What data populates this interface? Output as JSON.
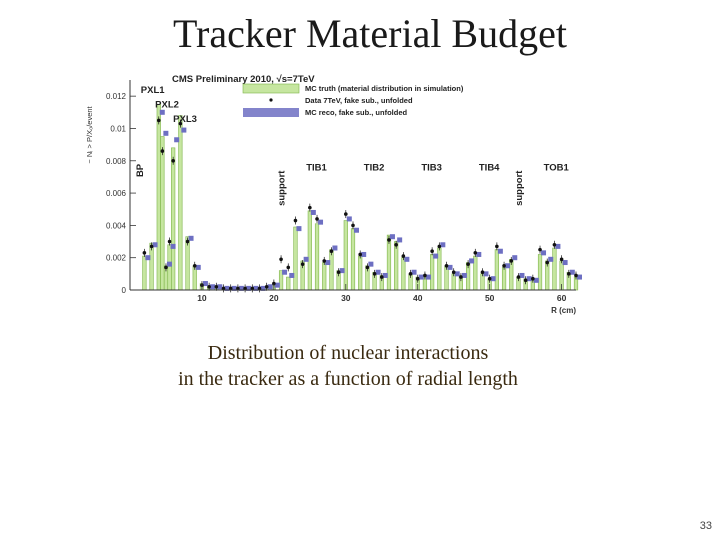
{
  "slide": {
    "title": "Tracker Material Budget",
    "caption_line1": "Distribution of nuclear interactions",
    "caption_line2": "in the tracker  as a function of radial length",
    "page_number": "33"
  },
  "chart_data": {
    "type": "bar",
    "title": "CMS Preliminary 2010, √s=7TeV",
    "xlabel": "R (cm)",
    "ylabel": "~ Nᵢ > P/X₀/event",
    "xlim": [
      0,
      62
    ],
    "ylim": [
      0,
      0.013
    ],
    "x_ticks": [
      10,
      20,
      30,
      40,
      50,
      60
    ],
    "y_ticks": [
      "0",
      "0.002",
      "0.004",
      "0.006",
      "0.008",
      "0.01",
      "0.012"
    ],
    "y_tick_values": [
      0,
      0.002,
      0.004,
      0.006,
      0.008,
      0.01,
      0.012
    ],
    "bin_width_cm": 0.5,
    "grid": false,
    "legend_position": "top-right",
    "legend": [
      {
        "label": "MC truth (material distribution in simulation)",
        "style": "fill"
      },
      {
        "label": "Data 7TeV, fake sub., unfolded",
        "style": "point"
      },
      {
        "label": "MC reco, fake sub., unfolded",
        "style": "square"
      }
    ],
    "region_labels": [
      {
        "text": "PXL1",
        "x": 1.5,
        "y": 0.0122,
        "vertical": false
      },
      {
        "text": "PXL2",
        "x": 3.5,
        "y": 0.0113,
        "vertical": false
      },
      {
        "text": "PXL3",
        "x": 6.0,
        "y": 0.0104,
        "vertical": false
      },
      {
        "text": "BP",
        "x": 1.8,
        "y": 0.0074,
        "vertical": true
      },
      {
        "text": "support",
        "x": 21.5,
        "y": 0.0063,
        "vertical": true
      },
      {
        "text": "TIB1",
        "x": 24.5,
        "y": 0.0074,
        "vertical": false
      },
      {
        "text": "TIB2",
        "x": 32.5,
        "y": 0.0074,
        "vertical": false
      },
      {
        "text": "TIB3",
        "x": 40.5,
        "y": 0.0074,
        "vertical": false
      },
      {
        "text": "TIB4",
        "x": 48.5,
        "y": 0.0074,
        "vertical": false
      },
      {
        "text": "support",
        "x": 54.5,
        "y": 0.0063,
        "vertical": true
      },
      {
        "text": "TOB1",
        "x": 57.5,
        "y": 0.0074,
        "vertical": false
      }
    ],
    "series": [
      {
        "name": "MC truth (material distribution in simulation)",
        "x": [
          2,
          3,
          4,
          4.5,
          5,
          5.5,
          6,
          7,
          8,
          9,
          10,
          11,
          12,
          13,
          14,
          15,
          16,
          17,
          18,
          19,
          20,
          21,
          22,
          23,
          24,
          25,
          26,
          27,
          28,
          29,
          30,
          31,
          32,
          33,
          34,
          35,
          36,
          37,
          38,
          39,
          40,
          41,
          42,
          43,
          44,
          45,
          46,
          47,
          48,
          49,
          50,
          51,
          52,
          53,
          54,
          55,
          56,
          57,
          58,
          59,
          60,
          61,
          62
        ],
        "values": [
          0.0021,
          0.0029,
          0.0115,
          0.0095,
          0.0015,
          0.0028,
          0.0088,
          0.0108,
          0.0033,
          0.0015,
          0.0004,
          0.0002,
          0.0002,
          0.0001,
          0.0001,
          0.0001,
          0.0001,
          0.0001,
          0.0001,
          0.0002,
          0.0003,
          0.0012,
          0.0008,
          0.0039,
          0.0018,
          0.0049,
          0.0041,
          0.0017,
          0.0025,
          0.0012,
          0.0043,
          0.0038,
          0.0021,
          0.0015,
          0.0011,
          0.0009,
          0.0034,
          0.003,
          0.002,
          0.001,
          0.0008,
          0.0008,
          0.0022,
          0.0026,
          0.0015,
          0.001,
          0.0009,
          0.0017,
          0.0021,
          0.001,
          0.0007,
          0.0025,
          0.0014,
          0.0019,
          0.0008,
          0.0007,
          0.0006,
          0.0022,
          0.0018,
          0.0026,
          0.0018,
          0.0011,
          0.0008
        ]
      },
      {
        "name": "Data 7TeV, fake sub., unfolded",
        "x": [
          2,
          3,
          4,
          4.5,
          5,
          5.5,
          6,
          7,
          8,
          9,
          10,
          11,
          12,
          13,
          14,
          15,
          16,
          17,
          18,
          19,
          20,
          21,
          22,
          23,
          24,
          25,
          26,
          27,
          28,
          29,
          30,
          31,
          32,
          33,
          34,
          35,
          36,
          37,
          38,
          39,
          40,
          41,
          42,
          43,
          44,
          45,
          46,
          47,
          48,
          49,
          50,
          51,
          52,
          53,
          54,
          55,
          56,
          57,
          58,
          59,
          60,
          61,
          62
        ],
        "values": [
          0.0023,
          0.0027,
          0.0105,
          0.0086,
          0.0014,
          0.003,
          0.008,
          0.0103,
          0.003,
          0.0015,
          0.0003,
          0.0002,
          0.0002,
          0.0001,
          0.0001,
          0.0001,
          0.0001,
          0.0001,
          0.0001,
          0.0002,
          0.0004,
          0.0019,
          0.0014,
          0.0043,
          0.0016,
          0.0051,
          0.0044,
          0.0018,
          0.0024,
          0.0011,
          0.0047,
          0.004,
          0.0022,
          0.0014,
          0.001,
          0.0008,
          0.0031,
          0.0028,
          0.0021,
          0.001,
          0.0007,
          0.0009,
          0.0024,
          0.0027,
          0.0015,
          0.0011,
          0.0008,
          0.0016,
          0.0023,
          0.0011,
          0.0007,
          0.0027,
          0.0015,
          0.0018,
          0.0008,
          0.0006,
          0.0007,
          0.0025,
          0.0017,
          0.0028,
          0.0019,
          0.001,
          0.0009
        ]
      },
      {
        "name": "MC reco, fake sub., unfolded",
        "x": [
          2,
          3,
          4,
          4.5,
          5,
          5.5,
          6,
          7,
          8,
          9,
          10,
          11,
          12,
          13,
          14,
          15,
          16,
          17,
          18,
          19,
          20,
          21,
          22,
          23,
          24,
          25,
          26,
          27,
          28,
          29,
          30,
          31,
          32,
          33,
          34,
          35,
          36,
          37,
          38,
          39,
          40,
          41,
          42,
          43,
          44,
          45,
          46,
          47,
          48,
          49,
          50,
          51,
          52,
          53,
          54,
          55,
          56,
          57,
          58,
          59,
          60,
          61,
          62
        ],
        "values": [
          0.002,
          0.0028,
          0.011,
          0.0097,
          0.0016,
          0.0027,
          0.0093,
          0.0099,
          0.0032,
          0.0014,
          0.0004,
          0.0002,
          0.0002,
          0.0001,
          0.0001,
          0.0001,
          0.0001,
          0.0001,
          0.0001,
          0.0002,
          0.0003,
          0.0011,
          0.0009,
          0.0038,
          0.0019,
          0.0048,
          0.0042,
          0.0017,
          0.0026,
          0.0012,
          0.0044,
          0.0037,
          0.0022,
          0.0016,
          0.0011,
          0.0009,
          0.0033,
          0.0031,
          0.0019,
          0.0011,
          0.0008,
          0.0008,
          0.0021,
          0.0028,
          0.0014,
          0.001,
          0.0009,
          0.0018,
          0.0022,
          0.001,
          0.0007,
          0.0024,
          0.0015,
          0.002,
          0.0009,
          0.0007,
          0.0006,
          0.0023,
          0.0019,
          0.0027,
          0.0017,
          0.0011,
          0.0008
        ]
      }
    ],
    "colors": {
      "mc_truth_fill": "#c6e6a0",
      "mc_truth_edge": "#7fb54a",
      "data_marker": "#111111",
      "mc_reco_marker": "#6d6fc2",
      "axis": "#333333"
    }
  }
}
